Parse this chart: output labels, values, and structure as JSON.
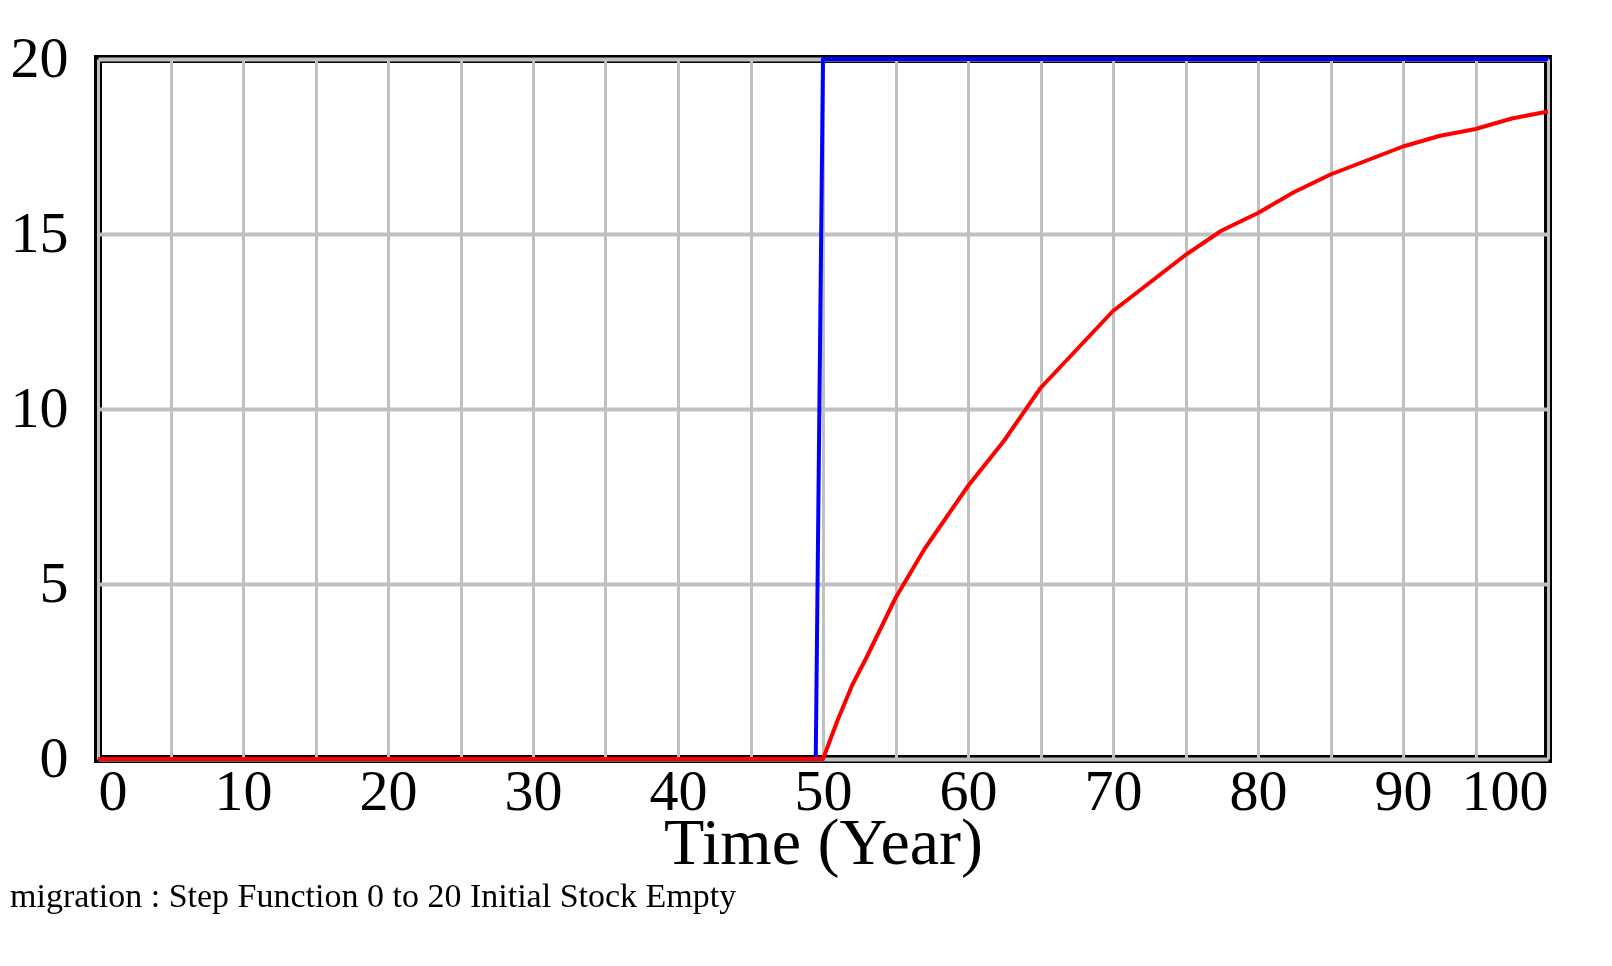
{
  "chart_data": {
    "type": "line",
    "xlabel": "Time (Year)",
    "annotations": [
      "migration : Step Function 0 to 20 Initial Stock Empty"
    ],
    "series": [
      {
        "color": "#0000ff",
        "x": [
          0,
          49.5,
          50,
          100
        ],
        "values": [
          0,
          0,
          20,
          20
        ]
      },
      {
        "color": "#ff0000",
        "x": [
          0,
          50,
          51,
          52,
          53,
          55,
          57,
          60,
          62.5,
          65,
          67.5,
          70,
          72.5,
          75,
          77.5,
          80,
          82.5,
          85,
          87.5,
          90,
          92.5,
          95,
          97.5,
          100
        ],
        "values": [
          0,
          0,
          1.1,
          2.1,
          2.9,
          4.6,
          6.0,
          7.8,
          9.1,
          10.6,
          11.7,
          12.8,
          13.6,
          14.4,
          15.1,
          15.6,
          16.2,
          16.7,
          17.1,
          17.5,
          17.8,
          18.0,
          18.3,
          18.5
        ]
      }
    ],
    "xlim": [
      0,
      100
    ],
    "xticks": [
      0,
      {
        "value": 5,
        "label": null
      },
      10,
      {
        "value": 15,
        "label": null
      },
      20,
      {
        "value": 25,
        "label": null
      },
      30,
      {
        "value": 35,
        "label": null
      },
      40,
      {
        "value": 45,
        "label": null
      },
      50,
      {
        "value": 55,
        "label": null
      },
      60,
      {
        "value": 65,
        "label": null
      },
      70,
      {
        "value": 75,
        "label": null
      },
      80,
      {
        "value": 85,
        "label": null
      },
      90,
      {
        "value": 95,
        "label": null
      },
      100
    ],
    "ylim": [
      0,
      20
    ],
    "yticks": [
      0,
      5,
      10,
      15,
      20
    ],
    "grid": true,
    "marker": "none",
    "line_style": "solid"
  }
}
